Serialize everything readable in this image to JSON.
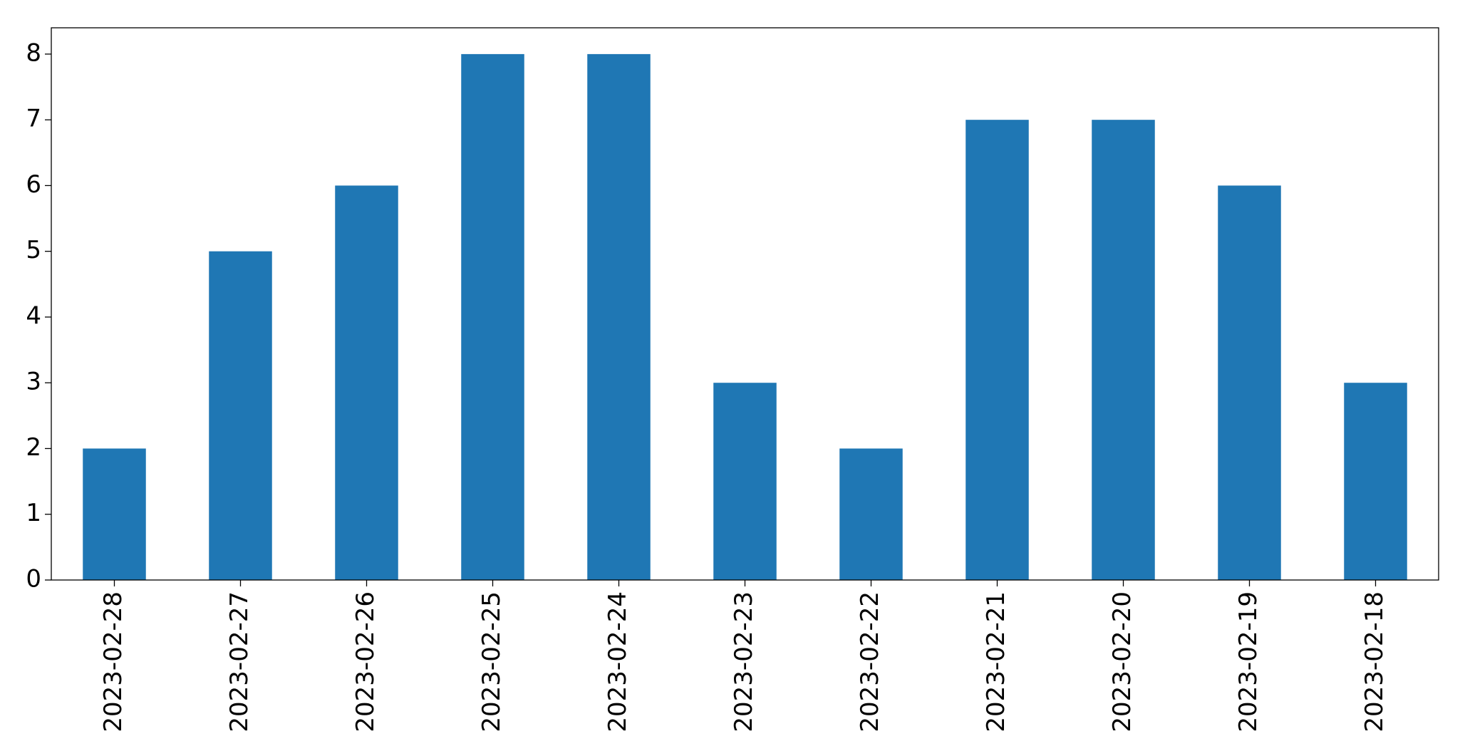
{
  "chart_data": {
    "type": "bar",
    "categories": [
      "2023-02-28",
      "2023-02-27",
      "2023-02-26",
      "2023-02-25",
      "2023-02-24",
      "2023-02-23",
      "2023-02-22",
      "2023-02-21",
      "2023-02-20",
      "2023-02-19",
      "2023-02-18"
    ],
    "values": [
      2,
      5,
      6,
      8,
      8,
      3,
      2,
      7,
      7,
      6,
      3
    ],
    "color": "#1f77b4",
    "ylim": [
      0,
      8.4
    ],
    "yticks": [
      0,
      1,
      2,
      3,
      4,
      5,
      6,
      7,
      8
    ],
    "grid": false
  }
}
